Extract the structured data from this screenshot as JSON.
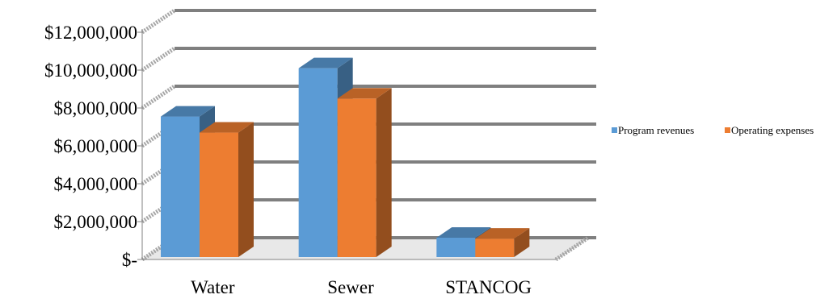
{
  "chart_data": {
    "type": "bar",
    "style": "3d-clustered-column",
    "categories": [
      "Water",
      "Sewer",
      "STANCOG"
    ],
    "series": [
      {
        "name": "Program revenues",
        "color": "#5b9bd5",
        "values": [
          7550000,
          10100000,
          1150000
        ]
      },
      {
        "name": "Operating expenses",
        "color": "#ed7d31",
        "values": [
          6700000,
          8500000,
          1100000
        ]
      }
    ],
    "y_ticks": [
      0,
      2000000,
      4000000,
      6000000,
      8000000,
      10000000,
      12000000
    ],
    "y_tick_labels": [
      "$-",
      "$2,000,000",
      "$4,000,000",
      "$6,000,000",
      "$8,000,000",
      "$10,000,000",
      "$12,000,000"
    ],
    "ylim": [
      0,
      12000000
    ],
    "grid": true,
    "legend_position": "right",
    "title": "",
    "xlabel": "",
    "ylabel": ""
  }
}
